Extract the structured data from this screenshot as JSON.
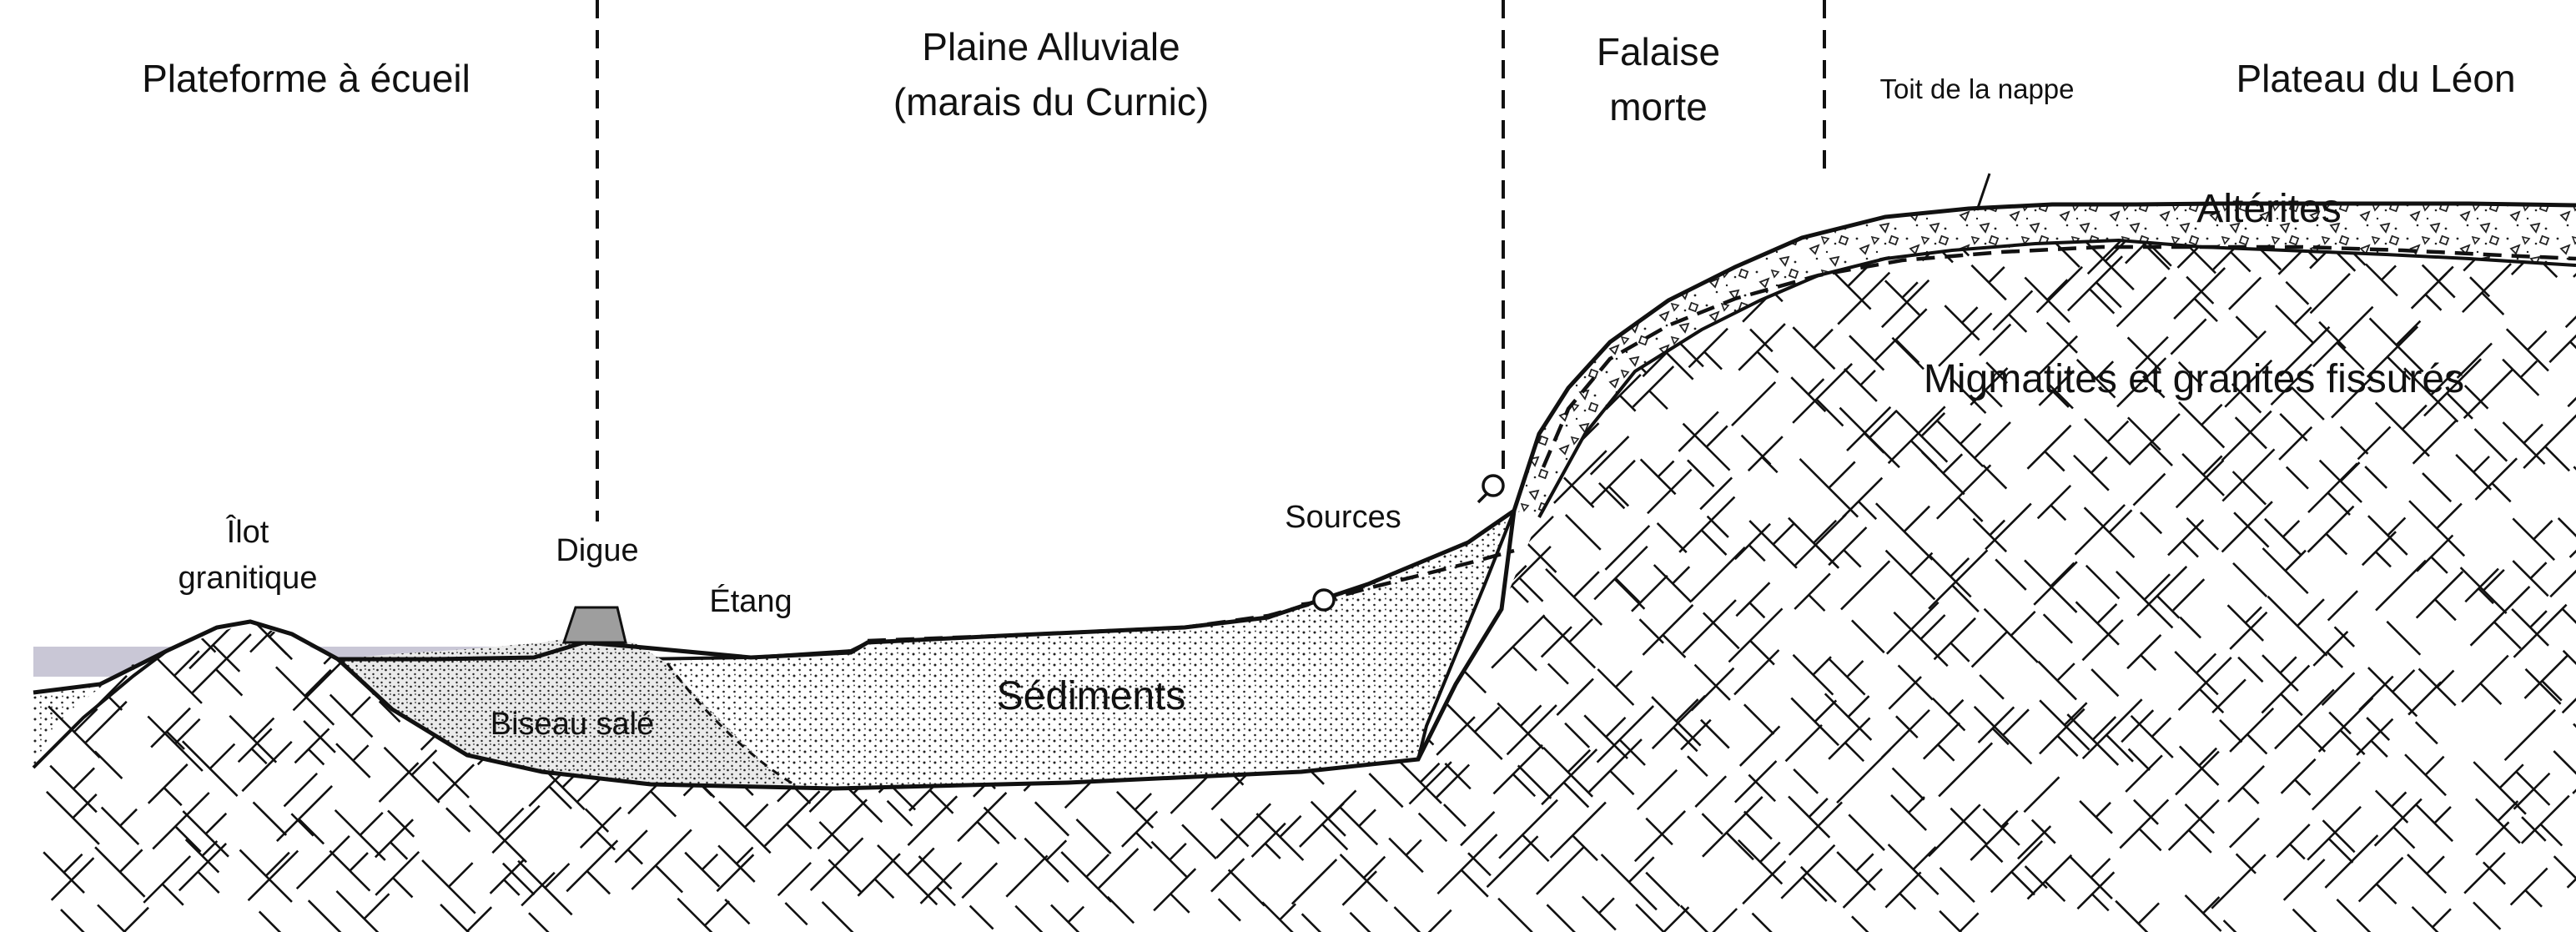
{
  "zones": {
    "plateforme": "Plateforme à écueil",
    "plaine_l1": "Plaine Alluviale",
    "plaine_l2": "(marais du Curnic)",
    "falaise_l1": "Falaise",
    "falaise_l2": "morte",
    "plateau": "Plateau du Léon"
  },
  "labels": {
    "ilot_l1": "Îlot",
    "ilot_l2": "granitique",
    "digue": "Digue",
    "etang": "Étang",
    "sources": "Sources",
    "toit_nappe": "Toit de la nappe",
    "alterites": "Altérites",
    "migmatites": "Migmatites et granites fissurés",
    "sediments": "Sédiments",
    "biseau": "Biseau salé"
  },
  "colors": {
    "sea": "#c9c7d6",
    "digue": "#9e9e9e",
    "line": "#111111"
  },
  "icons": {
    "spring_markers": "spring-icon"
  }
}
